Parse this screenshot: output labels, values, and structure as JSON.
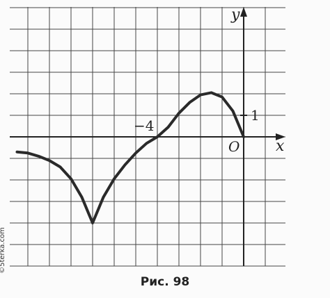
{
  "chart_data": {
    "type": "line",
    "xlabel": "x",
    "ylabel": "y",
    "xlim": [
      -10.5,
      2
    ],
    "ylim": [
      -5.5,
      6
    ],
    "grid": true,
    "tick_labels": {
      "x_neg4": "−4",
      "y_1": "1",
      "origin": "O"
    },
    "series": [
      {
        "values_xy": [
          [
            -10.5,
            -0.7
          ],
          [
            -10,
            -0.75
          ],
          [
            -9.5,
            -0.9
          ],
          [
            -9,
            -1.1
          ],
          [
            -8.5,
            -1.4
          ],
          [
            -8,
            -1.95
          ],
          [
            -7.5,
            -2.8
          ],
          [
            -7,
            -4
          ],
          [
            -6.5,
            -2.8
          ],
          [
            -6,
            -1.95
          ],
          [
            -5.5,
            -1.3
          ],
          [
            -5,
            -0.75
          ],
          [
            -4.5,
            -0.3
          ],
          [
            -4,
            0
          ],
          [
            -3.5,
            0.45
          ],
          [
            -3,
            1.1
          ],
          [
            -2.5,
            1.6
          ],
          [
            -2,
            1.95
          ],
          [
            -1.5,
            2.05
          ],
          [
            -1,
            1.85
          ],
          [
            -0.5,
            1.2
          ],
          [
            0,
            0
          ]
        ]
      }
    ]
  },
  "figure": {
    "caption": "Рис. 98",
    "watermark": "©5terka.com"
  }
}
